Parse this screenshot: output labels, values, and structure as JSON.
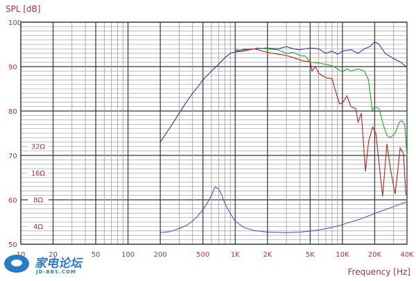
{
  "chart_data": {
    "type": "line",
    "ylabel": "SPL [dB]",
    "xlabel": "Frequency [Hz]",
    "xscale": "log",
    "xlim": [
      10,
      40000
    ],
    "ylim": [
      50,
      100
    ],
    "grid": true,
    "x_ticks": [
      {
        "value": 10,
        "label": "10"
      },
      {
        "value": 20,
        "label": "20"
      },
      {
        "value": 50,
        "label": "50"
      },
      {
        "value": 100,
        "label": "100"
      },
      {
        "value": 200,
        "label": "200"
      },
      {
        "value": 500,
        "label": "500"
      },
      {
        "value": 1000,
        "label": "1K"
      },
      {
        "value": 2000,
        "label": "2K"
      },
      {
        "value": 5000,
        "label": "5K"
      },
      {
        "value": 10000,
        "label": "10K"
      },
      {
        "value": 20000,
        "label": "20K"
      },
      {
        "value": 40000,
        "label": "40K"
      }
    ],
    "y_ticks": [
      {
        "value": 100,
        "label": "100"
      },
      {
        "value": 90,
        "label": "90"
      },
      {
        "value": 80,
        "label": "80"
      },
      {
        "value": 70,
        "label": "70"
      },
      {
        "value": 60,
        "label": "60"
      },
      {
        "value": 50,
        "label": "50"
      }
    ],
    "impedance_ticks": [
      {
        "value": 32,
        "label": "32Ω"
      },
      {
        "value": 16,
        "label": "16Ω"
      },
      {
        "value": 8,
        "label": "8Ω"
      },
      {
        "value": 4,
        "label": "4Ω"
      }
    ],
    "series": [
      {
        "color": "#3333aa",
        "unit": "dB",
        "points": [
          [
            200,
            73
          ],
          [
            250,
            76.5
          ],
          [
            300,
            79.5
          ],
          [
            350,
            82
          ],
          [
            400,
            84
          ],
          [
            450,
            85.5
          ],
          [
            500,
            87
          ],
          [
            600,
            89
          ],
          [
            700,
            90.5
          ],
          [
            800,
            92
          ],
          [
            900,
            93
          ],
          [
            1000,
            93.3
          ],
          [
            1200,
            93.5
          ],
          [
            1500,
            94
          ],
          [
            2000,
            94.2
          ],
          [
            2500,
            94
          ],
          [
            3000,
            94.5
          ],
          [
            3500,
            94
          ],
          [
            4000,
            93.8
          ],
          [
            5000,
            94.2
          ],
          [
            6000,
            94
          ],
          [
            7000,
            93
          ],
          [
            8000,
            93.5
          ],
          [
            9000,
            92.8
          ],
          [
            10000,
            93.5
          ],
          [
            12000,
            93.8
          ],
          [
            14000,
            93
          ],
          [
            16000,
            94
          ],
          [
            18000,
            94.5
          ],
          [
            20000,
            95.6
          ],
          [
            22000,
            95
          ],
          [
            25000,
            93
          ],
          [
            30000,
            91.8
          ],
          [
            35000,
            91
          ],
          [
            40000,
            89.8
          ]
        ]
      },
      {
        "color": "#22aa22",
        "unit": "dB",
        "points": [
          [
            1000,
            94
          ],
          [
            1100,
            93.5
          ],
          [
            1200,
            94
          ],
          [
            1400,
            93.8
          ],
          [
            1600,
            94.2
          ],
          [
            2000,
            94
          ],
          [
            2500,
            93.8
          ],
          [
            3000,
            93
          ],
          [
            3500,
            93.2
          ],
          [
            4000,
            92.5
          ],
          [
            4500,
            92.4
          ],
          [
            5000,
            91
          ],
          [
            6000,
            90.8
          ],
          [
            7000,
            90.5
          ],
          [
            8000,
            90.2
          ],
          [
            9000,
            89.5
          ],
          [
            10000,
            88.8
          ],
          [
            11000,
            89.5
          ],
          [
            12000,
            89
          ],
          [
            14000,
            89.5
          ],
          [
            16000,
            89
          ],
          [
            17500,
            87
          ],
          [
            19000,
            80
          ],
          [
            20000,
            81
          ],
          [
            22000,
            80.5
          ],
          [
            24000,
            77
          ],
          [
            26000,
            74.5
          ],
          [
            28000,
            74
          ],
          [
            31000,
            75
          ],
          [
            34000,
            77.5
          ],
          [
            36000,
            77.8
          ],
          [
            38000,
            77
          ],
          [
            40000,
            70
          ]
        ]
      },
      {
        "color": "#aa2222",
        "unit": "dB",
        "points": [
          [
            1000,
            93.5
          ],
          [
            1200,
            93.8
          ],
          [
            1500,
            94
          ],
          [
            2000,
            93.2
          ],
          [
            2500,
            92.8
          ],
          [
            3000,
            92.5
          ],
          [
            3500,
            92
          ],
          [
            4000,
            91.5
          ],
          [
            4500,
            91.2
          ],
          [
            5000,
            91.2
          ],
          [
            5200,
            89
          ],
          [
            5600,
            90
          ],
          [
            6000,
            88.5
          ],
          [
            7000,
            87.5
          ],
          [
            8000,
            87.3
          ],
          [
            8500,
            85
          ],
          [
            9400,
            81.6
          ],
          [
            10000,
            81.8
          ],
          [
            11000,
            83.4
          ],
          [
            12000,
            81
          ],
          [
            13300,
            80.5
          ],
          [
            14000,
            77.5
          ],
          [
            15000,
            79.5
          ],
          [
            16400,
            66.4
          ],
          [
            17500,
            73
          ],
          [
            19100,
            76.4
          ],
          [
            20500,
            75
          ],
          [
            22000,
            68
          ],
          [
            23700,
            60.8
          ],
          [
            26000,
            72.6
          ],
          [
            28000,
            67
          ],
          [
            31000,
            61.3
          ],
          [
            33000,
            67
          ],
          [
            34500,
            71.7
          ],
          [
            37000,
            70.5
          ],
          [
            39000,
            61.3
          ],
          [
            40000,
            61
          ]
        ]
      }
    ],
    "impedance": {
      "color": "#4444cc",
      "unit": "Ω",
      "points": [
        [
          200,
          3.4
        ],
        [
          250,
          3.5
        ],
        [
          300,
          3.8
        ],
        [
          350,
          4.1
        ],
        [
          400,
          4.6
        ],
        [
          450,
          5.3
        ],
        [
          500,
          6.2
        ],
        [
          550,
          7.4
        ],
        [
          600,
          9
        ],
        [
          650,
          11.2
        ],
        [
          700,
          10.6
        ],
        [
          750,
          9
        ],
        [
          800,
          7.3
        ],
        [
          900,
          5.6
        ],
        [
          1000,
          4.6
        ],
        [
          1200,
          3.9
        ],
        [
          1500,
          3.6
        ],
        [
          2000,
          3.45
        ],
        [
          3000,
          3.4
        ],
        [
          4000,
          3.45
        ],
        [
          5000,
          3.55
        ],
        [
          6000,
          3.65
        ],
        [
          8000,
          3.9
        ],
        [
          10000,
          4.2
        ],
        [
          15000,
          4.9
        ],
        [
          20000,
          5.6
        ],
        [
          30000,
          6.7
        ],
        [
          40000,
          7.6
        ]
      ]
    }
  },
  "watermark": {
    "name": "家电论坛",
    "site": "JD-BBS.COM"
  }
}
